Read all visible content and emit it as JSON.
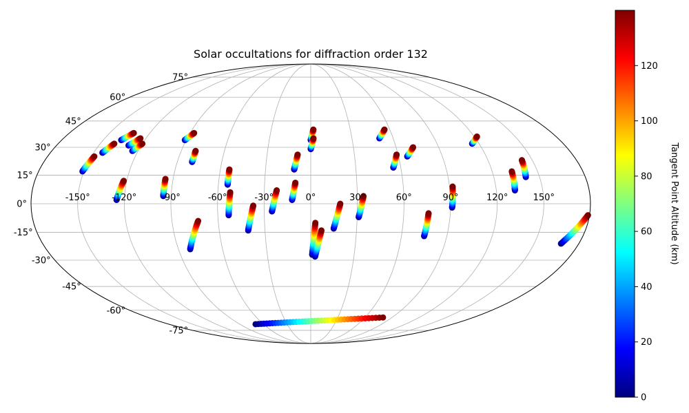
{
  "chart_data": {
    "type": "scatter",
    "projection": "mollweide",
    "title": "Solar occultations for diffraction order 132",
    "grid": true,
    "lon_ticks": [
      "-150°",
      "-120°",
      "-90°",
      "-60°",
      "-30°",
      "0°",
      "30°",
      "60°",
      "90°",
      "120°",
      "150°"
    ],
    "lon_tick_values": [
      -150,
      -120,
      -90,
      -60,
      -30,
      0,
      30,
      60,
      90,
      120,
      150
    ],
    "lat_ticks": [
      "75°",
      "60°",
      "45°",
      "30°",
      "15°",
      "0°",
      "-15°",
      "-30°",
      "-45°",
      "-60°",
      "-75°"
    ],
    "lat_tick_values": [
      75,
      60,
      45,
      30,
      15,
      0,
      -15,
      -30,
      -45,
      -60,
      -75
    ],
    "colorbar": {
      "label": "Tangent Point Altitude (km)",
      "range": [
        0,
        140
      ],
      "colormap": "jet",
      "ticks": [
        "0",
        "20",
        "40",
        "60",
        "80",
        "100",
        "120"
      ],
      "tick_values": [
        0,
        20,
        40,
        60,
        80,
        100,
        120
      ]
    },
    "tracks": [
      {
        "lon": [
          -151,
          -148
        ],
        "lat": [
          17,
          25
        ]
      },
      {
        "lon": [
          -144,
          -140
        ],
        "lat": [
          27,
          32
        ]
      },
      {
        "lon": [
          -137,
          -132
        ],
        "lat": [
          34,
          38
        ]
      },
      {
        "lon": [
          -129,
          -124
        ],
        "lat": [
          31,
          35
        ]
      },
      {
        "lon": [
          -124,
          -120
        ],
        "lat": [
          28,
          32
        ]
      },
      {
        "lon": [
          -125,
          -122
        ],
        "lat": [
          2,
          12
        ]
      },
      {
        "lon": [
          -95,
          -95
        ],
        "lat": [
          4,
          13
        ]
      },
      {
        "lon": [
          -91,
          -87
        ],
        "lat": [
          34,
          38
        ]
      },
      {
        "lon": [
          -80,
          -80
        ],
        "lat": [
          22,
          28
        ]
      },
      {
        "lon": [
          -82,
          -73
        ],
        "lat": [
          -24,
          -9
        ]
      },
      {
        "lon": [
          -54,
          -54
        ],
        "lat": [
          10,
          18
        ]
      },
      {
        "lon": [
          -53,
          -52
        ],
        "lat": [
          -6,
          6
        ]
      },
      {
        "lon": [
          -41,
          -37
        ],
        "lat": [
          -14,
          -1
        ]
      },
      {
        "lon": [
          -25,
          -22
        ],
        "lat": [
          -4,
          7
        ]
      },
      {
        "lon": [
          -11,
          -9
        ],
        "lat": [
          18,
          26
        ]
      },
      {
        "lon": [
          -12,
          -10
        ],
        "lat": [
          2,
          11
        ]
      },
      {
        "lon": [
          0,
          2
        ],
        "lat": [
          34,
          40
        ]
      },
      {
        "lon": [
          0,
          2
        ],
        "lat": [
          29,
          35
        ]
      },
      {
        "lon": [
          1,
          3
        ],
        "lat": [
          -27,
          -10
        ]
      },
      {
        "lon": [
          3,
          7
        ],
        "lat": [
          -28,
          -14
        ]
      },
      {
        "lon": [
          15,
          19
        ],
        "lat": [
          -13,
          0
        ]
      },
      {
        "lon": [
          31,
          34
        ],
        "lat": [
          -7,
          4
        ]
      },
      {
        "lon": [
          50,
          56
        ],
        "lat": [
          35,
          40
        ]
      },
      {
        "lon": [
          55,
          59
        ],
        "lat": [
          19,
          26
        ]
      },
      {
        "lon": [
          66,
          72
        ],
        "lat": [
          25,
          30
        ]
      },
      {
        "lon": [
          75,
          76
        ],
        "lat": [
          -17,
          -5
        ]
      },
      {
        "lon": [
          91,
          92
        ],
        "lat": [
          -2,
          9
        ]
      },
      {
        "lon": [
          115,
          122
        ],
        "lat": [
          32,
          36
        ]
      },
      {
        "lon": [
          132,
          133
        ],
        "lat": [
          7,
          17
        ]
      },
      {
        "lon": [
          141,
          143
        ],
        "lat": [
          14,
          23
        ]
      },
      {
        "lon": [
          168,
          179
        ],
        "lat": [
          -21,
          -6
        ]
      },
      {
        "lon": [
          -70,
          80
        ],
        "lat": [
          -70,
          -65
        ]
      }
    ]
  }
}
